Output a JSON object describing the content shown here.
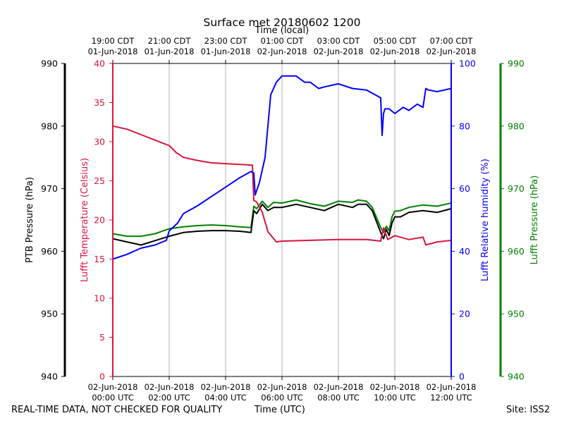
{
  "footer": {
    "disclaimer": "REAL-TIME DATA, NOT CHECKED FOR QUALITY",
    "xlabel": "Time (UTC)",
    "site": "Site: ISS2"
  },
  "colors": {
    "temperature": "#dc143c",
    "humidity": "#0000ff",
    "ptb_pressure": "#000000",
    "lufft_pressure": "#008000",
    "grid": "#b0b0b0"
  },
  "chart_data": {
    "type": "line",
    "title": "Surface met 20180602 1200",
    "top_axis_label": "Time (local)",
    "xlabel": "Time (UTC)",
    "x_range_hours": [
      0,
      12
    ],
    "grid": true,
    "x_ticks_bottom": [
      {
        "x": 0,
        "line1": "02-Jun-2018",
        "line2": "00:00 UTC"
      },
      {
        "x": 2,
        "line1": "02-Jun-2018",
        "line2": "02:00 UTC"
      },
      {
        "x": 4,
        "line1": "02-Jun-2018",
        "line2": "04:00 UTC"
      },
      {
        "x": 6,
        "line1": "02-Jun-2018",
        "line2": "06:00 UTC"
      },
      {
        "x": 8,
        "line1": "02-Jun-2018",
        "line2": "08:00 UTC"
      },
      {
        "x": 10,
        "line1": "02-Jun-2018",
        "line2": "10:00 UTC"
      },
      {
        "x": 12,
        "line1": "02-Jun-2018",
        "line2": "12:00 UTC"
      }
    ],
    "x_ticks_top": [
      {
        "x": 0,
        "line1": "19:00 CDT",
        "line2": "01-Jun-2018"
      },
      {
        "x": 2,
        "line1": "21:00 CDT",
        "line2": "01-Jun-2018"
      },
      {
        "x": 4,
        "line1": "23:00 CDT",
        "line2": "01-Jun-2018"
      },
      {
        "x": 6,
        "line1": "01:00 CDT",
        "line2": "02-Jun-2018"
      },
      {
        "x": 8,
        "line1": "03:00 CDT",
        "line2": "02-Jun-2018"
      },
      {
        "x": 10,
        "line1": "05:00 CDT",
        "line2": "02-Jun-2018"
      },
      {
        "x": 12,
        "line1": "07:00 CDT",
        "line2": "02-Jun-2018"
      }
    ],
    "axes": [
      {
        "id": "ptb",
        "label": "PTB Pressure (hPa)",
        "range": [
          940,
          990
        ],
        "ticks": [
          940,
          950,
          960,
          970,
          980,
          990
        ],
        "color": "#000000"
      },
      {
        "id": "temp",
        "label": "Lufft Temperature (Celsius)",
        "range": [
          0,
          40
        ],
        "ticks": [
          0,
          5,
          10,
          15,
          20,
          25,
          30,
          35,
          40
        ],
        "color": "#dc143c"
      },
      {
        "id": "rh",
        "label": "Lufft Relative humidity (%)",
        "range": [
          0,
          100
        ],
        "ticks": [
          0,
          20,
          40,
          60,
          80,
          100
        ],
        "color": "#0000ff"
      },
      {
        "id": "lufftp",
        "label": "Lufft Pressure (hPa)",
        "range": [
          940,
          990
        ],
        "ticks": [
          940,
          950,
          960,
          970,
          980,
          990
        ],
        "color": "#008000"
      }
    ],
    "series": [
      {
        "name": "Lufft Temperature",
        "axis": "temp",
        "color": "#dc143c",
        "x": [
          0,
          0.5,
          1,
          1.5,
          2,
          2.25,
          2.5,
          3,
          3.5,
          4,
          4.5,
          4.95,
          5.0,
          5.1,
          5.3,
          5.5,
          5.8,
          6.0,
          7.0,
          8.0,
          9.0,
          9.5,
          9.6,
          9.75,
          10.0,
          10.5,
          11.0,
          11.1,
          11.5,
          12.0
        ],
        "y": [
          32.0,
          31.6,
          30.9,
          30.2,
          29.5,
          28.6,
          28.0,
          27.6,
          27.3,
          27.2,
          27.1,
          27.0,
          22.5,
          22.3,
          21.0,
          18.5,
          17.2,
          17.3,
          17.4,
          17.5,
          17.5,
          17.3,
          19.0,
          17.5,
          18.0,
          17.5,
          17.8,
          16.8,
          17.2,
          17.4
        ]
      },
      {
        "name": "Lufft Relative humidity",
        "axis": "rh",
        "color": "#0000ff",
        "x": [
          0,
          0.5,
          1,
          1.5,
          1.9,
          2.0,
          2.3,
          2.5,
          3.0,
          3.5,
          4.0,
          4.5,
          4.9,
          5.0,
          5.05,
          5.2,
          5.4,
          5.5,
          5.6,
          5.8,
          6.0,
          6.5,
          6.8,
          7.0,
          7.3,
          7.5,
          8.0,
          8.5,
          9.0,
          9.3,
          9.5,
          9.55,
          9.6,
          9.65,
          9.8,
          10.0,
          10.3,
          10.5,
          10.8,
          11.0,
          11.1,
          11.2,
          11.5,
          12.0
        ],
        "y": [
          37.5,
          39.0,
          41.0,
          42.0,
          43.5,
          46.5,
          49.0,
          52.0,
          54.5,
          57.5,
          60.5,
          63.5,
          65.5,
          65.0,
          58.0,
          62.0,
          70.0,
          80.0,
          90.0,
          94.0,
          96.0,
          96.0,
          94.0,
          94.0,
          92.0,
          92.5,
          93.5,
          92.0,
          91.5,
          90.0,
          89.0,
          77.0,
          84.0,
          85.5,
          85.5,
          84.0,
          86.0,
          85.0,
          87.0,
          86.0,
          92.0,
          91.5,
          91.0,
          92.0
        ]
      },
      {
        "name": "PTB Pressure",
        "axis": "ptb",
        "color": "#000000",
        "x": [
          0,
          0.5,
          1,
          1.5,
          2,
          2.5,
          3,
          3.5,
          4,
          4.5,
          4.9,
          5.0,
          5.1,
          5.3,
          5.5,
          5.7,
          6.0,
          6.3,
          6.5,
          7.0,
          7.5,
          8.0,
          8.5,
          8.7,
          9.0,
          9.2,
          9.5,
          9.6,
          9.7,
          9.8,
          9.9,
          10.0,
          10.2,
          10.5,
          11.0,
          11.5,
          12.0
        ],
        "y": [
          962.0,
          961.5,
          961.0,
          961.7,
          962.4,
          963.0,
          963.2,
          963.3,
          963.3,
          963.2,
          963.0,
          966.5,
          966.0,
          967.5,
          966.5,
          967.0,
          967.0,
          967.3,
          967.5,
          967.0,
          966.5,
          967.5,
          967.0,
          967.5,
          967.5,
          966.5,
          963.0,
          962.0,
          963.5,
          962.5,
          964.5,
          965.5,
          965.5,
          966.2,
          966.5,
          966.2,
          966.8
        ]
      },
      {
        "name": "Lufft Pressure",
        "axis": "lufftp",
        "color": "#008000",
        "x": [
          0,
          0.5,
          1,
          1.5,
          2,
          2.5,
          3,
          3.5,
          4,
          4.5,
          4.9,
          5.0,
          5.1,
          5.3,
          5.5,
          5.7,
          6.0,
          6.3,
          6.5,
          7.0,
          7.5,
          8.0,
          8.5,
          8.7,
          9.0,
          9.2,
          9.5,
          9.6,
          9.7,
          9.8,
          9.9,
          10.0,
          10.2,
          10.5,
          11.0,
          11.5,
          12.0
        ],
        "y": [
          962.8,
          962.4,
          962.4,
          962.8,
          963.6,
          963.9,
          964.1,
          964.2,
          964.1,
          963.9,
          963.8,
          967.2,
          966.8,
          968.0,
          967.0,
          967.8,
          967.7,
          968.0,
          968.2,
          967.6,
          967.2,
          968.0,
          967.8,
          968.2,
          968.0,
          967.0,
          963.8,
          963.0,
          964.0,
          963.3,
          965.5,
          966.4,
          966.5,
          967.0,
          967.4,
          967.2,
          967.7
        ]
      }
    ]
  }
}
